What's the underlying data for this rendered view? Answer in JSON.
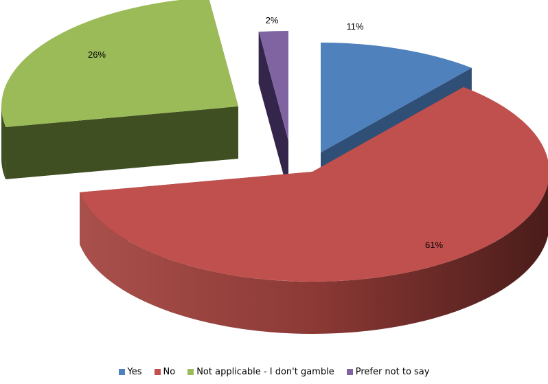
{
  "chart_data": {
    "type": "pie",
    "title": "",
    "legend_position": "bottom",
    "slices": [
      {
        "name": "Yes",
        "value": 11,
        "label": "11%",
        "color": "#4F81BD",
        "side_color": "#2F4F77"
      },
      {
        "name": "No",
        "value": 61,
        "label": "61%",
        "color": "#C0504D",
        "side_color": "#7A2C2A"
      },
      {
        "name": "Not applicable - I don't gamble",
        "value": 26,
        "label": "26%",
        "color": "#9BBB59",
        "side_color": "#3F4F22"
      },
      {
        "name": "Prefer not to say",
        "value": 2,
        "label": "2%",
        "color": "#8064A2",
        "side_color": "#34264A"
      }
    ]
  }
}
